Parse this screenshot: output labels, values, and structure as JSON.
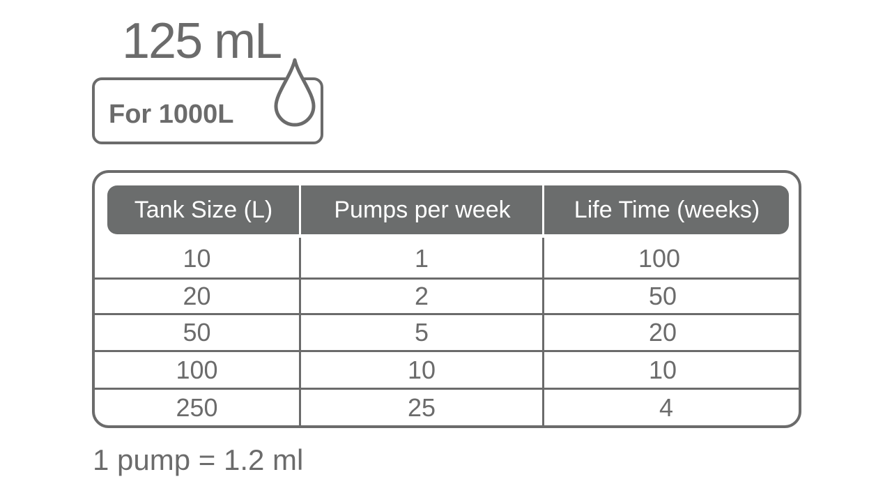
{
  "volume_label": "125 mL",
  "coverage_label": "For 1000L",
  "icon": "water-drop-icon",
  "table": {
    "headers": [
      "Tank Size (L)",
      "Pumps per week",
      "Life Time (weeks)"
    ],
    "rows": [
      [
        "10",
        "1",
        "100"
      ],
      [
        "20",
        "2",
        "50"
      ],
      [
        "50",
        "5",
        "20"
      ],
      [
        "100",
        "10",
        "10"
      ],
      [
        "250",
        "25",
        "4"
      ]
    ]
  },
  "footer_note": "1 pump = 1.2 ml",
  "colors": {
    "primary": "#6b6b6b",
    "header_bg": "#6b6d6d",
    "header_text": "#ffffff",
    "background": "#ffffff"
  }
}
